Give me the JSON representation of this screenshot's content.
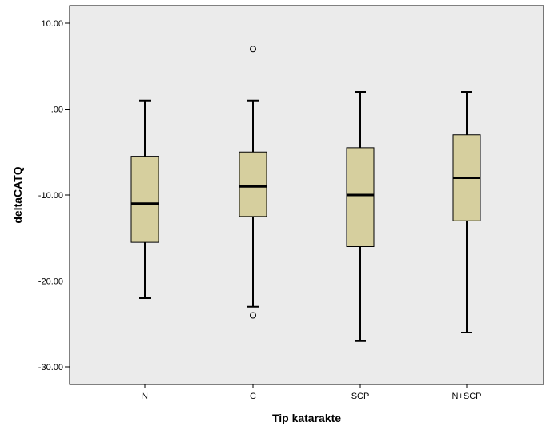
{
  "chart_data": {
    "type": "boxplot",
    "xlabel": "Tip katarakte",
    "ylabel": "deltaCATQ",
    "ylim": [
      -32,
      11
    ],
    "yticks": [
      10,
      0,
      -10,
      -20,
      -30
    ],
    "ytick_labels": [
      "10.00",
      ".00",
      "-10.00",
      "-20.00",
      "-30.00"
    ],
    "categories": [
      "N",
      "C",
      "SCP",
      "N+SCP"
    ],
    "boxes": [
      {
        "category": "N",
        "whisker_low": -22,
        "q1": -15.5,
        "median": -11,
        "q3": -5.5,
        "whisker_high": 1,
        "outliers": []
      },
      {
        "category": "C",
        "whisker_low": -23,
        "q1": -12.5,
        "median": -9,
        "q3": -5,
        "whisker_high": 1,
        "outliers": [
          7,
          -24
        ]
      },
      {
        "category": "SCP",
        "whisker_low": -27,
        "q1": -16,
        "median": -10,
        "q3": -4.5,
        "whisker_high": 2,
        "outliers": []
      },
      {
        "category": "N+SCP",
        "whisker_low": -26,
        "q1": -13,
        "median": -8,
        "q3": -3,
        "whisker_high": 2,
        "outliers": []
      }
    ],
    "grid": false,
    "colors": {
      "plot_background": "#ebebeb",
      "box_fill": "#d6cf9e",
      "line": "#000000"
    }
  }
}
